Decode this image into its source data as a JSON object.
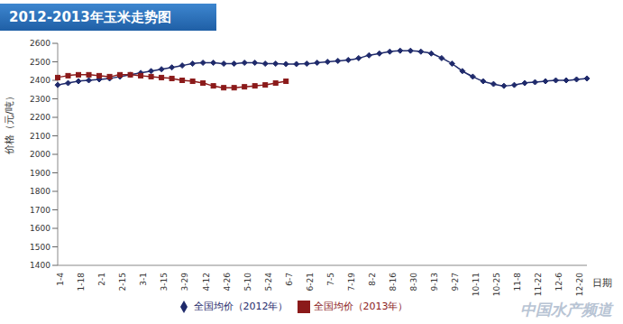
{
  "chart_data": {
    "type": "line",
    "title": "2012-2013年玉米走势图",
    "y_label": "价格（元/吨）",
    "x_label": "日期",
    "watermark": "中国水产频道",
    "categories": [
      "1-4",
      null,
      "1-18",
      null,
      "2-1",
      null,
      "2-15",
      null,
      "3-1",
      null,
      "3-15",
      null,
      "3-29",
      null,
      "4-12",
      null,
      "4-26",
      null,
      "5-10",
      null,
      "5-24",
      null,
      "6-7",
      null,
      "6-21",
      null,
      "7-5",
      null,
      "7-19",
      null,
      "8-2",
      null,
      "8-16",
      null,
      "8-30",
      null,
      "9-13",
      null,
      "9-27",
      null,
      "10-11",
      null,
      "10-25",
      null,
      "11-8",
      null,
      "11-22",
      null,
      "12-6",
      null,
      "12-20",
      null
    ],
    "series": [
      {
        "name": "全国均价（2012年）",
        "color": "#1f2a6b",
        "marker": "diamond",
        "values": [
          2375,
          2385,
          2395,
          2400,
          2405,
          2410,
          2420,
          2430,
          2440,
          2450,
          2460,
          2470,
          2480,
          2490,
          2495,
          2495,
          2490,
          2490,
          2495,
          2495,
          2490,
          2490,
          2488,
          2488,
          2490,
          2495,
          2500,
          2505,
          2510,
          2520,
          2535,
          2545,
          2555,
          2560,
          2560,
          2555,
          2545,
          2520,
          2490,
          2450,
          2420,
          2395,
          2380,
          2370,
          2375,
          2385,
          2390,
          2395,
          2400,
          2400,
          2405,
          2410
        ]
      },
      {
        "name": "全国均价（2013年）",
        "color": "#8b1a1a",
        "marker": "square",
        "values": [
          2415,
          2425,
          2430,
          2430,
          2425,
          2420,
          2430,
          2430,
          2425,
          2420,
          2415,
          2410,
          2400,
          2395,
          2385,
          2370,
          2360,
          2360,
          2365,
          2370,
          2375,
          2385,
          2395,
          null,
          null,
          null,
          null,
          null,
          null,
          null,
          null,
          null,
          null,
          null,
          null,
          null,
          null,
          null,
          null,
          null,
          null,
          null,
          null,
          null,
          null,
          null,
          null,
          null,
          null,
          null,
          null,
          null
        ]
      }
    ],
    "ylim": [
      1400,
      2600
    ],
    "yticks": [
      1400,
      1500,
      1600,
      1700,
      1800,
      1900,
      2000,
      2100,
      2200,
      2300,
      2400,
      2500,
      2600
    ],
    "grid": false,
    "legend": "bottom"
  }
}
